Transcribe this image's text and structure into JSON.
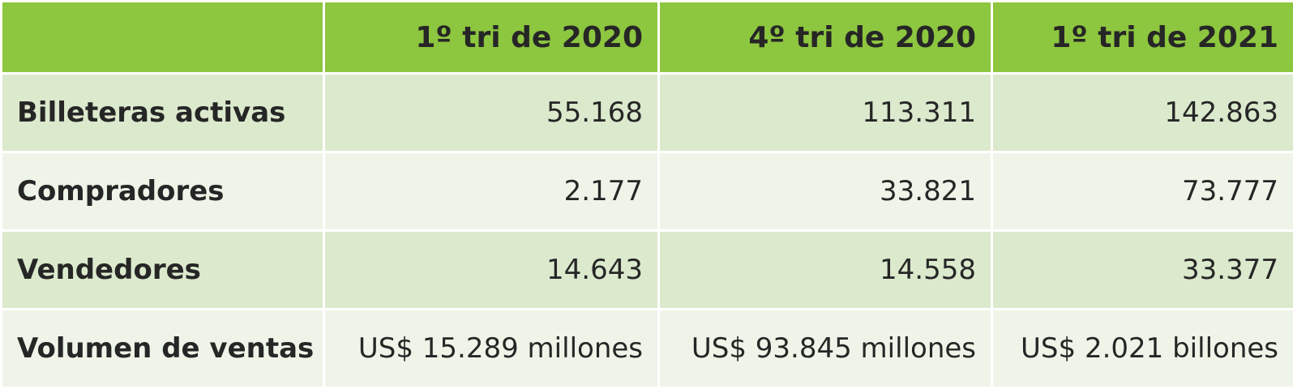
{
  "table": {
    "columns": [
      "1º tri de 2020",
      "4º tri de 2020",
      "1º tri de 2021"
    ],
    "rows": [
      {
        "label": "Billeteras activas",
        "cells": [
          "55.168",
          "113.311",
          "142.863"
        ]
      },
      {
        "label": "Compradores",
        "cells": [
          "2.177",
          "33.821",
          "73.777"
        ]
      },
      {
        "label": "Vendedores",
        "cells": [
          "14.643",
          "14.558",
          "33.377"
        ]
      },
      {
        "label": "Volumen de ventas",
        "cells": [
          "US$ 15.289 millones",
          "US$ 93.845 millones",
          "US$ 2.021 billones"
        ]
      }
    ]
  }
}
